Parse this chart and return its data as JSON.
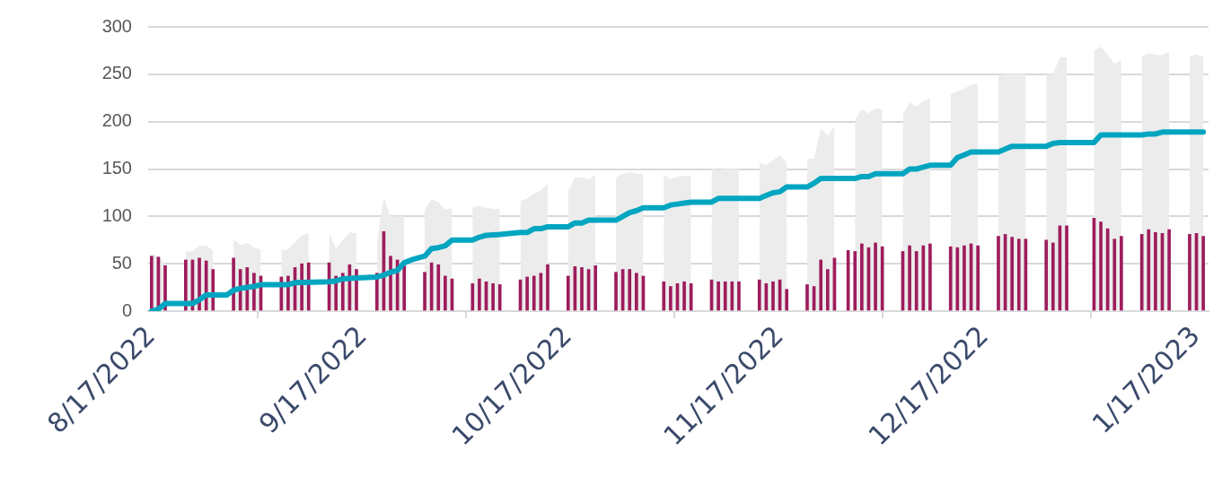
{
  "chart_data": {
    "type": "bar",
    "xlim": [
      "2022-08-16T12:00",
      "2023-01-18T18:00"
    ],
    "xticks": [
      {
        "value": "2022-08-17",
        "label": "8/17/2022"
      },
      {
        "value": "2022-09-17",
        "label": "9/17/2022"
      },
      {
        "value": "2022-10-17",
        "label": "10/17/2022"
      },
      {
        "value": "2022-11-17",
        "label": "11/17/2022"
      },
      {
        "value": "2022-12-17",
        "label": "12/17/2022"
      },
      {
        "value": "2023-01-17",
        "label": "1/17/2023"
      }
    ],
    "ylim": [
      0,
      300
    ],
    "yticks": [
      0,
      50,
      100,
      150,
      200,
      250,
      300
    ],
    "grid": "y",
    "series": [
      {
        "type": "area",
        "color": "#ececec",
        "x": [
          "2022-08-17",
          "2022-08-18",
          "2022-08-19",
          "2022-08-20",
          "2022-08-22",
          "2022-08-23",
          "2022-08-24",
          "2022-08-25",
          "2022-08-26",
          "2022-08-27",
          "2022-08-29",
          "2022-08-30",
          "2022-08-31",
          "2022-09-01",
          "2022-09-02",
          "2022-09-03",
          "2022-09-05",
          "2022-09-06",
          "2022-09-07",
          "2022-09-08",
          "2022-09-09",
          "2022-09-10",
          "2022-09-12",
          "2022-09-13",
          "2022-09-14",
          "2022-09-15",
          "2022-09-16",
          "2022-09-17",
          "2022-09-19",
          "2022-09-20",
          "2022-09-21",
          "2022-09-22",
          "2022-09-23",
          "2022-09-24",
          "2022-09-26",
          "2022-09-27",
          "2022-09-28",
          "2022-09-29",
          "2022-09-30",
          "2022-10-01",
          "2022-10-03",
          "2022-10-04",
          "2022-10-05",
          "2022-10-06",
          "2022-10-07",
          "2022-10-08",
          "2022-10-10",
          "2022-10-11",
          "2022-10-12",
          "2022-10-13",
          "2022-10-14",
          "2022-10-15",
          "2022-10-17",
          "2022-10-18",
          "2022-10-19",
          "2022-10-20",
          "2022-10-21",
          "2022-10-22",
          "2022-10-24",
          "2022-10-25",
          "2022-10-26",
          "2022-10-27",
          "2022-10-28",
          "2022-10-29",
          "2022-10-31",
          "2022-11-01",
          "2022-11-02",
          "2022-11-03",
          "2022-11-04",
          "2022-11-05",
          "2022-11-07",
          "2022-11-08",
          "2022-11-09",
          "2022-11-10",
          "2022-11-11",
          "2022-11-12",
          "2022-11-14",
          "2022-11-15",
          "2022-11-16",
          "2022-11-17",
          "2022-11-18",
          "2022-11-19",
          "2022-11-21",
          "2022-11-22",
          "2022-11-23",
          "2022-11-24",
          "2022-11-25",
          "2022-11-26",
          "2022-11-28",
          "2022-11-29",
          "2022-11-30",
          "2022-12-01",
          "2022-12-02",
          "2022-12-03",
          "2022-12-05",
          "2022-12-06",
          "2022-12-07",
          "2022-12-08",
          "2022-12-09",
          "2022-12-10",
          "2022-12-12",
          "2022-12-13",
          "2022-12-14",
          "2022-12-15",
          "2022-12-16",
          "2022-12-17",
          "2022-12-19",
          "2022-12-20",
          "2022-12-21",
          "2022-12-22",
          "2022-12-23",
          "2022-12-24",
          "2022-12-26",
          "2022-12-27",
          "2022-12-28",
          "2022-12-29",
          "2022-12-31",
          "2023-01-02",
          "2023-01-03",
          "2023-01-04",
          "2023-01-05",
          "2023-01-06",
          "2023-01-07",
          "2023-01-09",
          "2023-01-10",
          "2023-01-11",
          "2023-01-12",
          "2023-01-13",
          "2023-01-14",
          "2023-01-16",
          "2023-01-17",
          "2023-01-18"
        ],
        "values": [
          60,
          58,
          50,
          null,
          63,
          63,
          69,
          69,
          64,
          null,
          76,
          70,
          72,
          67,
          65,
          null,
          64,
          65,
          73,
          80,
          82,
          null,
          83,
          66,
          75,
          83,
          82,
          null,
          73,
          120,
          100,
          100,
          100,
          null,
          107,
          118,
          115,
          107,
          109,
          null,
          110,
          111,
          109,
          108,
          108,
          null,
          116,
          119,
          124,
          127,
          135,
          null,
          127,
          141,
          141,
          139,
          144,
          null,
          141,
          145,
          147,
          145,
          145,
          null,
          144,
          139,
          142,
          143,
          143,
          null,
          150,
          149,
          150,
          150,
          150,
          null,
          157,
          154,
          159,
          165,
          157,
          null,
          161,
          161,
          193,
          185,
          195,
          null,
          202,
          213,
          209,
          214,
          213,
          null,
          208,
          220,
          216,
          222,
          225,
          null,
          229,
          232,
          235,
          239,
          240,
          null,
          249,
          250,
          250,
          250,
          250,
          null,
          250,
          250,
          268,
          268,
          null,
          275,
          279,
          271,
          261,
          265,
          null,
          269,
          272,
          271,
          270,
          274,
          null,
          269,
          271,
          268
        ]
      },
      {
        "type": "bar",
        "color": "#9e1c5c",
        "x": [
          "2022-08-17",
          "2022-08-18",
          "2022-08-19",
          "2022-08-22",
          "2022-08-23",
          "2022-08-24",
          "2022-08-25",
          "2022-08-26",
          "2022-08-29",
          "2022-08-30",
          "2022-08-31",
          "2022-09-01",
          "2022-09-02",
          "2022-09-05",
          "2022-09-06",
          "2022-09-07",
          "2022-09-08",
          "2022-09-09",
          "2022-09-12",
          "2022-09-13",
          "2022-09-14",
          "2022-09-15",
          "2022-09-16",
          "2022-09-19",
          "2022-09-20",
          "2022-09-21",
          "2022-09-22",
          "2022-09-23",
          "2022-09-26",
          "2022-09-27",
          "2022-09-28",
          "2022-09-29",
          "2022-09-30",
          "2022-10-03",
          "2022-10-04",
          "2022-10-05",
          "2022-10-06",
          "2022-10-07",
          "2022-10-10",
          "2022-10-11",
          "2022-10-12",
          "2022-10-13",
          "2022-10-14",
          "2022-10-17",
          "2022-10-18",
          "2022-10-19",
          "2022-10-20",
          "2022-10-21",
          "2022-10-24",
          "2022-10-25",
          "2022-10-26",
          "2022-10-27",
          "2022-10-28",
          "2022-10-31",
          "2022-11-01",
          "2022-11-02",
          "2022-11-03",
          "2022-11-04",
          "2022-11-07",
          "2022-11-08",
          "2022-11-09",
          "2022-11-10",
          "2022-11-11",
          "2022-11-14",
          "2022-11-15",
          "2022-11-16",
          "2022-11-17",
          "2022-11-18",
          "2022-11-21",
          "2022-11-22",
          "2022-11-23",
          "2022-11-24",
          "2022-11-25",
          "2022-11-27",
          "2022-11-28",
          "2022-11-29",
          "2022-11-30",
          "2022-12-01",
          "2022-12-02",
          "2022-12-05",
          "2022-12-06",
          "2022-12-07",
          "2022-12-08",
          "2022-12-09",
          "2022-12-12",
          "2022-12-13",
          "2022-12-14",
          "2022-12-15",
          "2022-12-16",
          "2022-12-19",
          "2022-12-20",
          "2022-12-21",
          "2022-12-22",
          "2022-12-23",
          "2022-12-26",
          "2022-12-27",
          "2022-12-28",
          "2022-12-29",
          "2023-01-02",
          "2023-01-03",
          "2023-01-04",
          "2023-01-05",
          "2023-01-06",
          "2023-01-09",
          "2023-01-10",
          "2023-01-11",
          "2023-01-12",
          "2023-01-13",
          "2023-01-16",
          "2023-01-17",
          "2023-01-18"
        ],
        "values": [
          58,
          57,
          48,
          54,
          54,
          56,
          53,
          44,
          56,
          44,
          46,
          40,
          37,
          36,
          37,
          46,
          50,
          51,
          51,
          37,
          40,
          49,
          44,
          40,
          84,
          58,
          54,
          50,
          41,
          51,
          49,
          37,
          34,
          29,
          34,
          31,
          29,
          28,
          33,
          36,
          37,
          40,
          49,
          37,
          47,
          46,
          44,
          48,
          41,
          44,
          44,
          40,
          37,
          31,
          26,
          29,
          31,
          29,
          33,
          31,
          31,
          31,
          31,
          33,
          29,
          31,
          33,
          23,
          28,
          26,
          54,
          44,
          56,
          64,
          63,
          71,
          67,
          72,
          68,
          63,
          69,
          63,
          69,
          71,
          68,
          67,
          69,
          71,
          69,
          79,
          81,
          78,
          76,
          76,
          75,
          72,
          90,
          90,
          98,
          94,
          87,
          76,
          79,
          81,
          86,
          83,
          82,
          86,
          81,
          82,
          79
        ]
      },
      {
        "type": "line",
        "color": "#00a5c0",
        "x": [
          "2022-08-17",
          "2022-08-18",
          "2022-08-19",
          "2022-08-23",
          "2022-08-24",
          "2022-08-25",
          "2022-08-28",
          "2022-08-29",
          "2022-08-30",
          "2022-09-01",
          "2022-09-02",
          "2022-09-06",
          "2022-09-07",
          "2022-09-12",
          "2022-09-13",
          "2022-09-14",
          "2022-09-16",
          "2022-09-19",
          "2022-09-20",
          "2022-09-21",
          "2022-09-22",
          "2022-09-23",
          "2022-09-24",
          "2022-09-26",
          "2022-09-27",
          "2022-09-28",
          "2022-09-29",
          "2022-09-30",
          "2022-10-03",
          "2022-10-04",
          "2022-10-05",
          "2022-10-07",
          "2022-10-10",
          "2022-10-11",
          "2022-10-12",
          "2022-10-13",
          "2022-10-14",
          "2022-10-17",
          "2022-10-18",
          "2022-10-19",
          "2022-10-20",
          "2022-10-24",
          "2022-10-25",
          "2022-10-26",
          "2022-10-27",
          "2022-10-28",
          "2022-10-31",
          "2022-11-01",
          "2022-11-02",
          "2022-11-03",
          "2022-11-04",
          "2022-11-07",
          "2022-11-08",
          "2022-11-14",
          "2022-11-15",
          "2022-11-16",
          "2022-11-17",
          "2022-11-18",
          "2022-11-21",
          "2022-11-22",
          "2022-11-23",
          "2022-11-28",
          "2022-11-29",
          "2022-11-30",
          "2022-12-01",
          "2022-12-05",
          "2022-12-06",
          "2022-12-07",
          "2022-12-08",
          "2022-12-09",
          "2022-12-12",
          "2022-12-13",
          "2022-12-14",
          "2022-12-15",
          "2022-12-19",
          "2022-12-20",
          "2022-12-21",
          "2022-12-26",
          "2022-12-27",
          "2022-12-28",
          "2023-01-02",
          "2023-01-03",
          "2023-01-09",
          "2023-01-10",
          "2023-01-11",
          "2023-01-12",
          "2023-01-18"
        ],
        "values": [
          0,
          2,
          8,
          8,
          12,
          17,
          17,
          22,
          24,
          26,
          28,
          28,
          30,
          31,
          32,
          34,
          35,
          36,
          38,
          41,
          43,
          51,
          54,
          58,
          66,
          67,
          69,
          75,
          75,
          78,
          80,
          81,
          83,
          83,
          87,
          87,
          89,
          89,
          93,
          93,
          96,
          96,
          100,
          104,
          106,
          109,
          109,
          112,
          113,
          114,
          115,
          115,
          119,
          119,
          122,
          125,
          126,
          131,
          131,
          135,
          140,
          140,
          142,
          142,
          145,
          145,
          150,
          150,
          152,
          154,
          154,
          162,
          165,
          168,
          168,
          171,
          174,
          174,
          177,
          178,
          178,
          186,
          186,
          187,
          187,
          189,
          189
        ]
      }
    ]
  }
}
